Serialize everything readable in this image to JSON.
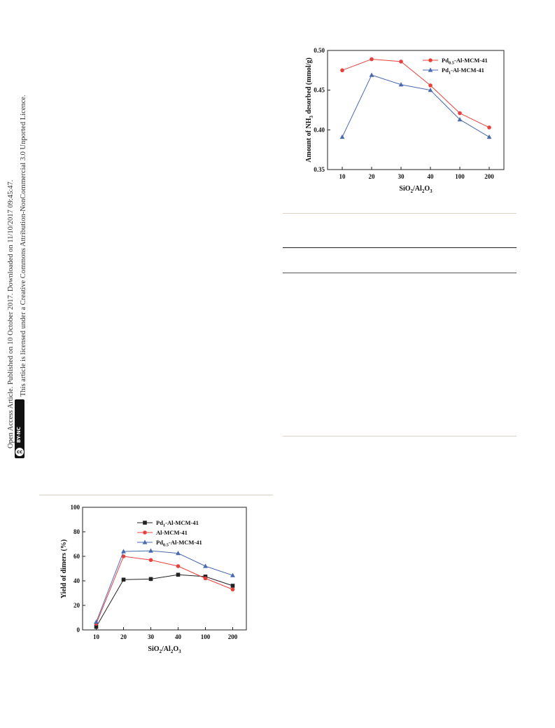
{
  "margin": {
    "line1": "Open Access Article. Published on 10 October 2017. Downloaded on 11/10/2017 09:45:47.",
    "line2": "This article is licensed under a Creative Commons Attribution-NonCommercial 3.0 Unported Licence.",
    "badge_cc": "cc",
    "badge_text": "BY-NC"
  },
  "chart_data": [
    {
      "type": "line",
      "categories": [
        "10",
        "20",
        "30",
        "40",
        "100",
        "200"
      ],
      "xlabel_main": "SiO",
      "xlabel_s1": "2",
      "xlabel_mid": "/Al",
      "xlabel_s2": "2",
      "xlabel_end": "O",
      "xlabel_s3": "3",
      "ylabel_main": "Amount of NH",
      "ylabel_sub": "3",
      "ylabel_end": " desorbed (mmol/g)",
      "ylim": [
        0.35,
        0.5
      ],
      "yticks": [
        "0.35",
        "0.40",
        "0.45",
        "0.50"
      ],
      "legend_position": "top-right",
      "series": [
        {
          "name_pre": "Pd",
          "name_sub": "0.5",
          "name_post": "-Al-MCM-41",
          "color": "#e8413a",
          "marker": "circle",
          "values": [
            0.475,
            0.489,
            0.486,
            0.456,
            0.421,
            0.403
          ]
        },
        {
          "name_pre": "Pd",
          "name_sub": "1",
          "name_post": "-Al-MCM-41",
          "color": "#4a6ab0",
          "marker": "triangle",
          "values": [
            0.391,
            0.469,
            0.457,
            0.45,
            0.413,
            0.391
          ]
        }
      ]
    },
    {
      "type": "line",
      "categories": [
        "10",
        "20",
        "30",
        "40",
        "100",
        "200"
      ],
      "xlabel_main": "SiO",
      "xlabel_s1": "2",
      "xlabel_mid": "/Al",
      "xlabel_s2": "2",
      "xlabel_end": "O",
      "xlabel_s3": "3",
      "ylabel": "Yield of dimers (%)",
      "ylim": [
        0,
        100
      ],
      "yticks": [
        "0",
        "20",
        "40",
        "60",
        "80",
        "100"
      ],
      "legend_position": "top-right",
      "series": [
        {
          "name_pre": "Pd",
          "name_sub": "1",
          "name_post": "-Al-MCM-41",
          "color": "#222222",
          "marker": "square",
          "values": [
            2.5,
            41,
            41.5,
            45,
            43.5,
            36
          ]
        },
        {
          "name_pre": "Al-MCM-41",
          "name_sub": "",
          "name_post": "",
          "color": "#e8413a",
          "marker": "circle",
          "values": [
            5,
            60,
            57,
            52,
            42,
            33
          ]
        },
        {
          "name_pre": "Pd",
          "name_sub": "0.5",
          "name_post": "-Al-MCM-41",
          "color": "#4a6ab0",
          "marker": "triangle",
          "values": [
            6.5,
            64,
            64.5,
            62.5,
            52,
            44.5
          ]
        }
      ]
    }
  ]
}
